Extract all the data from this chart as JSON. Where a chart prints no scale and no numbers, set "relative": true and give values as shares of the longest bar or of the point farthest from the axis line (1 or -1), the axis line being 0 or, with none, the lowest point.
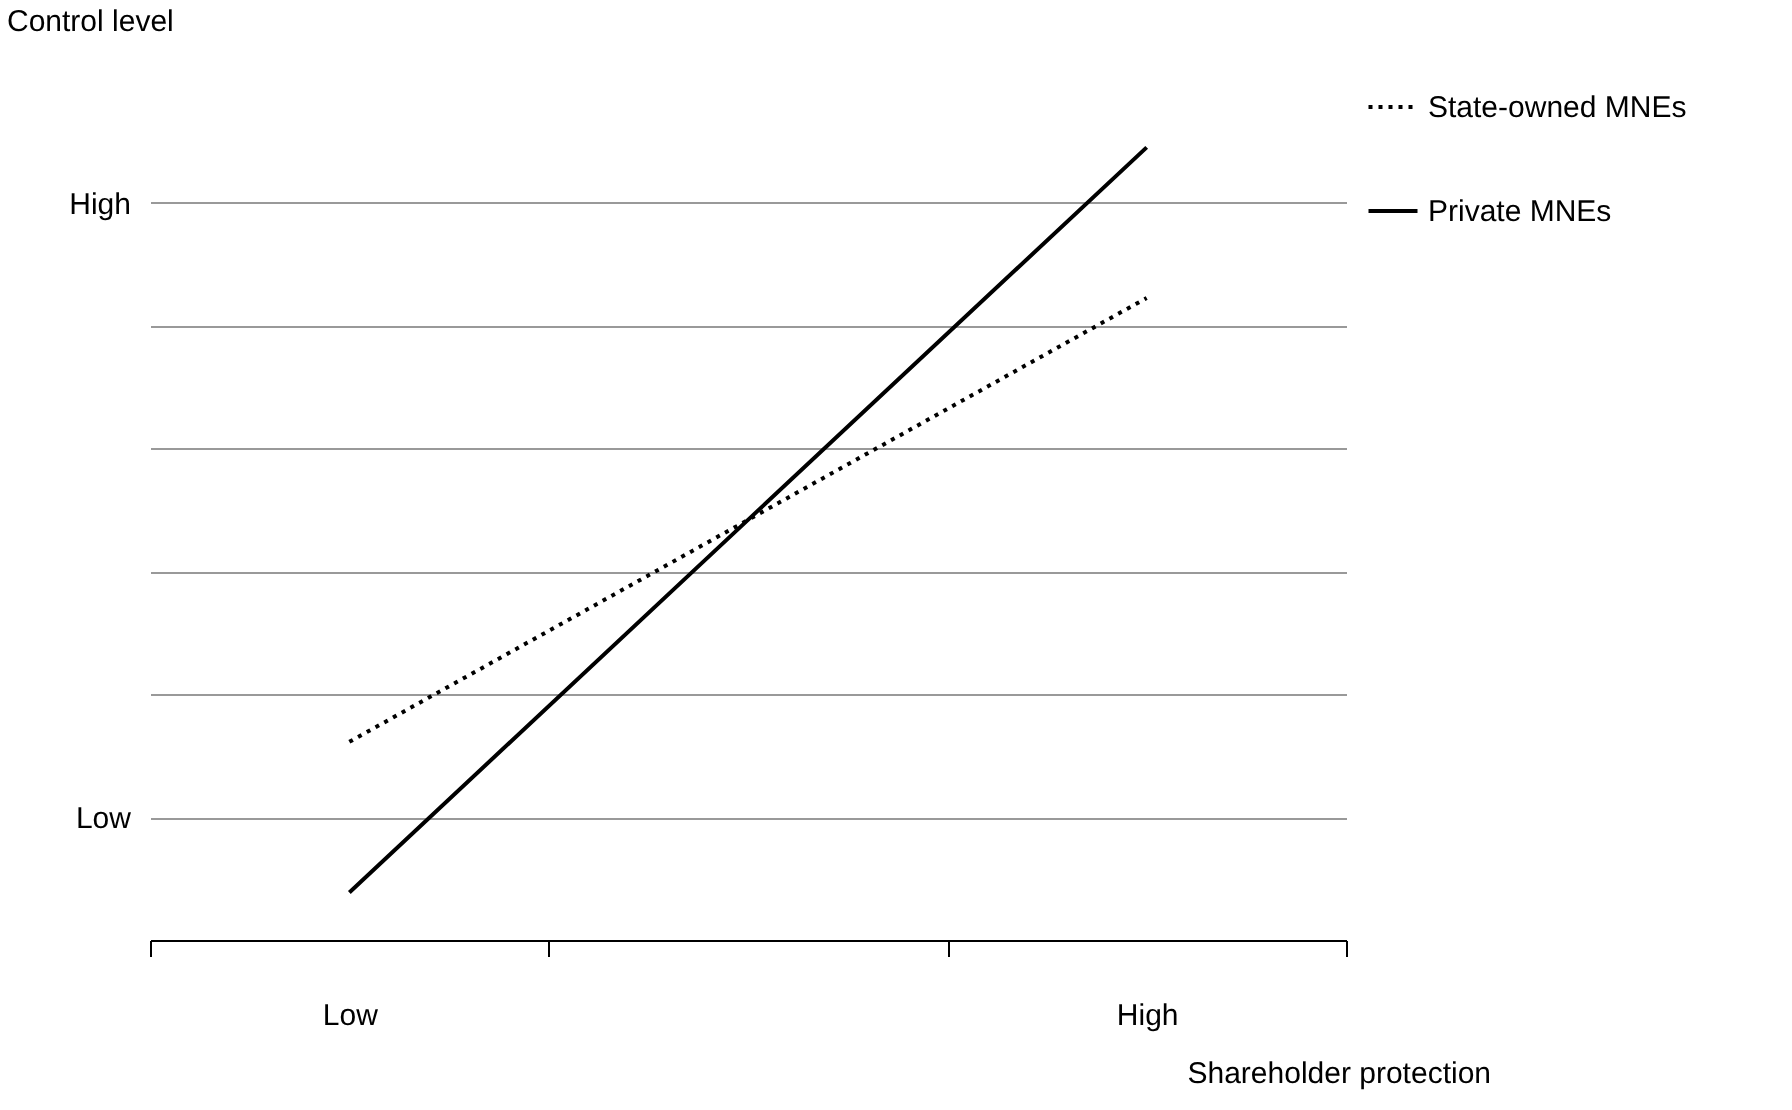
{
  "chart_data": {
    "type": "line",
    "xlabel": "Shareholder protection",
    "ylabel": "Control level",
    "categories": [
      "Low",
      null,
      "High"
    ],
    "series": [
      {
        "name": "State-owned MNEs",
        "color": "#000000",
        "line_style": "dotted",
        "values": [
          0.25,
          0.53,
          0.81
        ]
      },
      {
        "name": "Private MNEs",
        "color": "#000000",
        "line_style": "solid",
        "values": [
          0.06,
          0.53,
          1
        ]
      }
    ],
    "relative": true,
    "y_categories": [
      "High",
      null,
      null,
      null,
      null,
      "Low"
    ],
    "grid": "y",
    "legend": "right",
    "marker": "none"
  }
}
